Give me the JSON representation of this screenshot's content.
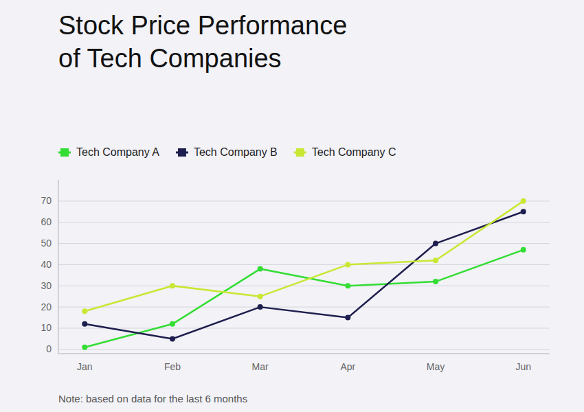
{
  "chart_data": {
    "type": "line",
    "title": "Stock Price Performance\nof Tech Companies",
    "note": "Note: based on data for the last 6 months",
    "categories": [
      "Jan",
      "Feb",
      "Mar",
      "Apr",
      "May",
      "Jun"
    ],
    "series": [
      {
        "name": "Tech Company A",
        "color": "#33dd33",
        "values": [
          1,
          12,
          38,
          30,
          32,
          47
        ]
      },
      {
        "name": "Tech Company B",
        "color": "#1e1e4e",
        "values": [
          12,
          5,
          20,
          15,
          50,
          65
        ]
      },
      {
        "name": "Tech Company C",
        "color": "#c8e832",
        "values": [
          18,
          30,
          25,
          40,
          42,
          70
        ]
      }
    ],
    "ylim": [
      -2,
      80
    ],
    "yticks": [
      0,
      10,
      20,
      30,
      40,
      50,
      60,
      70
    ],
    "grid": true,
    "legend": "upper left",
    "marker": "circle"
  }
}
